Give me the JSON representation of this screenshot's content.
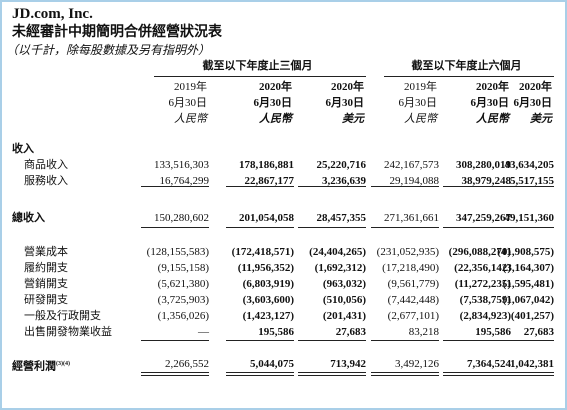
{
  "header": {
    "title": "JD.com, Inc.",
    "subtitle": "未經審計中期簡明合併經營狀況表",
    "note": "（以千計，除每股數據及另有指明外）"
  },
  "table": {
    "group_headers": [
      "截至以下年度止三個月",
      "截至以下年度止六個月"
    ],
    "columns": [
      {
        "year": "2019年",
        "date": "6月30日",
        "currency": "人民幣"
      },
      {
        "year": "2020年",
        "date": "6月30日",
        "currency": "人民幣"
      },
      {
        "year": "2020年",
        "date": "6月30日",
        "currency": "美元"
      },
      {
        "year": "2019年",
        "date": "6月30日",
        "currency": "人民幣"
      },
      {
        "year": "2020年",
        "date": "6月30日",
        "currency": "人民幣"
      },
      {
        "year": "2020年",
        "date": "6月30日",
        "currency": "美元"
      }
    ],
    "rows": [
      {
        "label": "收入"
      },
      {
        "label": "商品收入",
        "values": [
          "133,516,303",
          "178,186,881",
          "25,220,716",
          "242,167,573",
          "308,280,019",
          "43,634,205"
        ]
      },
      {
        "label": "服務收入",
        "values": [
          "16,764,299",
          "22,867,177",
          "3,236,639",
          "29,194,088",
          "38,979,248",
          "5,517,155"
        ]
      },
      {
        "label": "總收入",
        "values": [
          "150,280,602",
          "201,054,058",
          "28,457,355",
          "271,361,661",
          "347,259,267",
          "49,151,360"
        ]
      },
      {
        "label": "營業成本",
        "values": [
          "(128,155,583)",
          "(172,418,571)",
          "(24,404,265)",
          "(231,052,935)",
          "(296,088,270)",
          "(41,908,575)"
        ]
      },
      {
        "label": "履約開支",
        "values": [
          "(9,155,158)",
          "(11,956,352)",
          "(1,692,312)",
          "(17,218,490)",
          "(22,356,142)",
          "(3,164,307)"
        ]
      },
      {
        "label": "營銷開支",
        "values": [
          "(5,621,380)",
          "(6,803,919)",
          "(963,032)",
          "(9,561,779)",
          "(11,272,235)",
          "(1,595,481)"
        ]
      },
      {
        "label": "研發開支",
        "values": [
          "(3,725,903)",
          "(3,603,600)",
          "(510,056)",
          "(7,442,448)",
          "(7,538,759)",
          "(1,067,042)"
        ]
      },
      {
        "label": "一般及行政開支",
        "values": [
          "(1,356,026)",
          "(1,423,127)",
          "(201,431)",
          "(2,677,101)",
          "(2,834,923)",
          "(401,257)"
        ]
      },
      {
        "label": "出售開發物業收益",
        "values": [
          "—",
          "195,586",
          "27,683",
          "83,218",
          "195,586",
          "27,683"
        ]
      },
      {
        "label": "經營利潤",
        "label_note": "(3)(4)",
        "values": [
          "2,266,552",
          "5,044,075",
          "713,942",
          "3,492,126",
          "7,364,524",
          "1,042,381"
        ]
      }
    ]
  }
}
